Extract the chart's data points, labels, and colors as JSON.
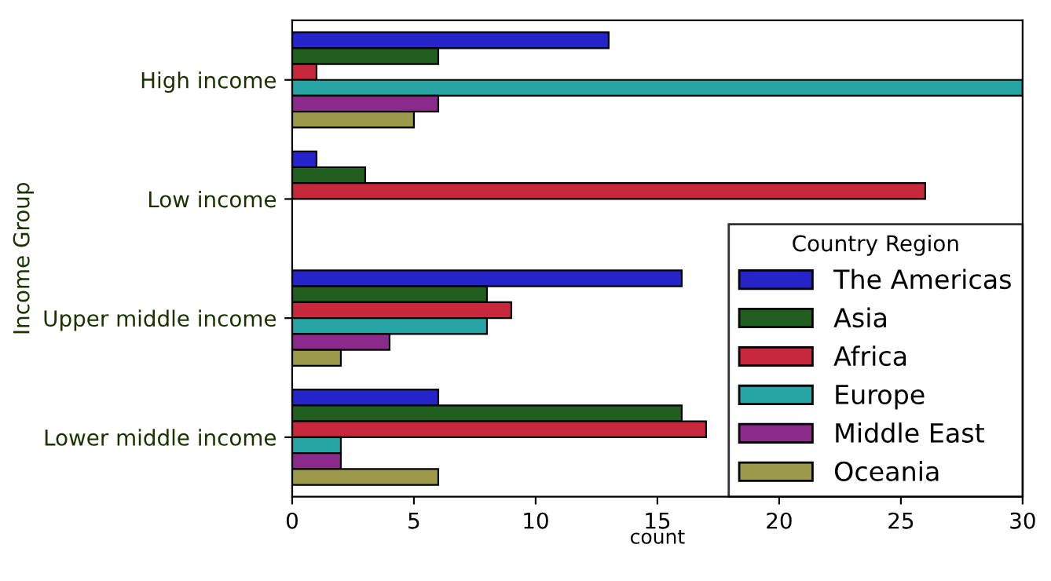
{
  "chart_data": {
    "type": "bar",
    "orientation": "horizontal",
    "xlabel": "count",
    "ylabel": "Income Group",
    "legend_title": "Country Region",
    "legend": "bottom right",
    "grid": false,
    "categories": [
      "High income",
      "Low income",
      "Upper middle income",
      "Lower middle income"
    ],
    "xlim": [
      0,
      30
    ],
    "xticks": [
      0,
      5,
      10,
      15,
      20,
      25,
      30
    ],
    "series": [
      {
        "name": "The Americas",
        "color": "#2424c8",
        "values": [
          13,
          1,
          16,
          6
        ]
      },
      {
        "name": "Asia",
        "color": "#215f21",
        "values": [
          6,
          3,
          8,
          16
        ]
      },
      {
        "name": "Africa",
        "color": "#c8283c",
        "values": [
          1,
          26,
          9,
          17
        ]
      },
      {
        "name": "Europe",
        "color": "#27a4a4",
        "values": [
          30,
          null,
          8,
          2
        ]
      },
      {
        "name": "Middle East",
        "color": "#8c2a8c",
        "values": [
          6,
          null,
          4,
          2
        ]
      },
      {
        "name": "Oceania",
        "color": "#9a9a4a",
        "values": [
          5,
          null,
          2,
          6
        ]
      }
    ]
  }
}
